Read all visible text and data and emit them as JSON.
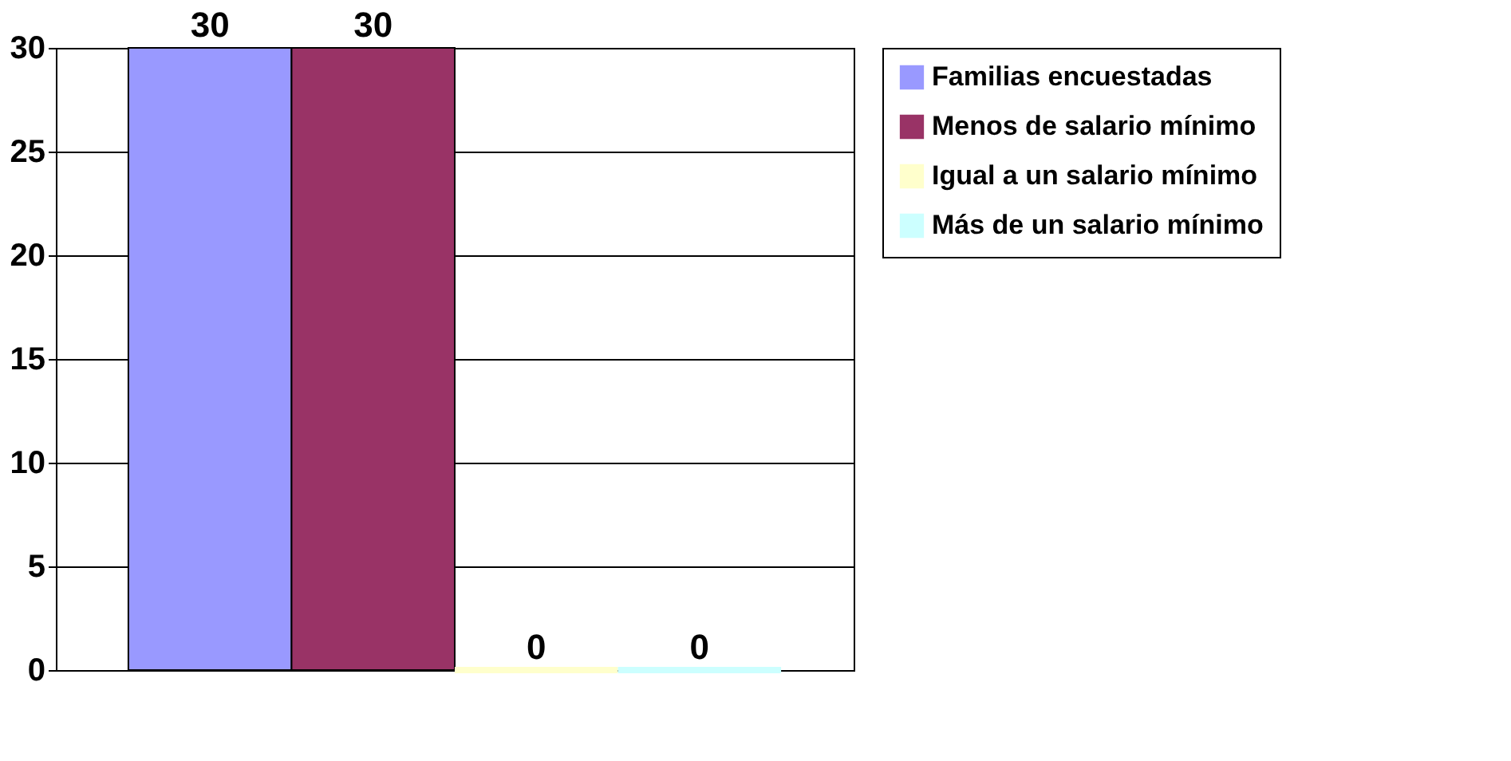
{
  "chart_data": {
    "type": "bar",
    "categories": [
      null
    ],
    "series": [
      {
        "name": "Familias encuestadas",
        "color": "#9999ff",
        "values": [
          30
        ]
      },
      {
        "name": "Menos de salario mínimo",
        "color": "#993366",
        "values": [
          30
        ]
      },
      {
        "name": "Igual a un salario mínimo",
        "color": "#ffffcc",
        "values": [
          0
        ]
      },
      {
        "name": "Más de un salario mínimo",
        "color": "#ccffff",
        "values": [
          0
        ]
      }
    ],
    "ylim": [
      0,
      30
    ],
    "yticks": [
      0,
      5,
      10,
      15,
      20,
      25,
      30
    ],
    "grid": "y",
    "legend": "right",
    "data_labels": true
  }
}
